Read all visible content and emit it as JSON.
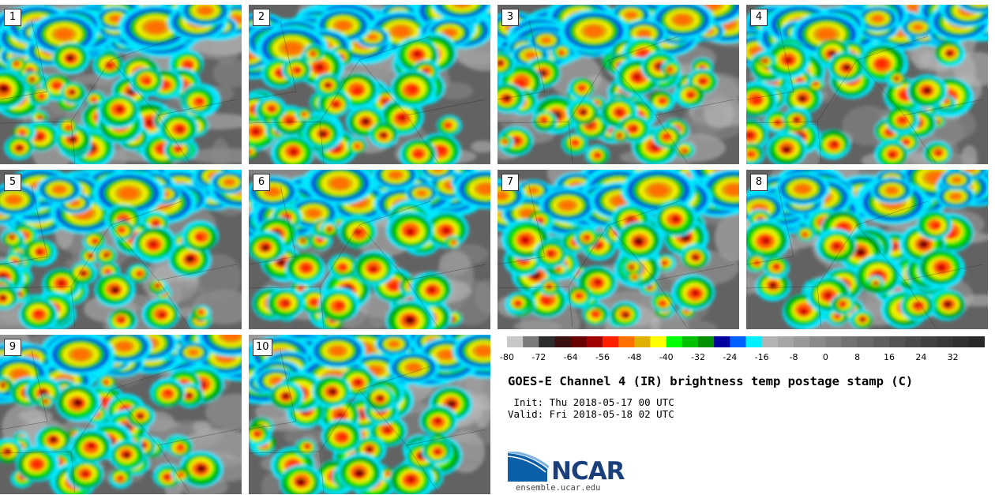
{
  "chart_data": {
    "type": "heatmap",
    "title": "GOES-E Channel 4 (IR) brightness temp postage stamp (C)",
    "init": " Init: Thu 2018-05-17 00 UTC",
    "valid": "Valid: Fri 2018-05-18 02 UTC",
    "panels": [
      "1",
      "2",
      "3",
      "4",
      "5",
      "6",
      "7",
      "8",
      "9",
      "10"
    ],
    "colorbar": {
      "min": -80,
      "max": 40,
      "step": 4,
      "ticks": [
        "-80",
        "-72",
        "-64",
        "-56",
        "-48",
        "-40",
        "-32",
        "-24",
        "-16",
        "-8",
        "0",
        "8",
        "16",
        "24",
        "32"
      ],
      "tick_values": [
        -80,
        -72,
        -64,
        -56,
        -48,
        -40,
        -32,
        -24,
        -16,
        -8,
        0,
        8,
        16,
        24,
        32
      ],
      "colors": [
        "#c8c8c8",
        "#7a7a7a",
        "#2c2c2c",
        "#3a1010",
        "#680000",
        "#a00000",
        "#ff2000",
        "#ff7000",
        "#e0b000",
        "#ffff00",
        "#00ff00",
        "#00c000",
        "#009000",
        "#0000a0",
        "#0060ff",
        "#00f0ff",
        "#b4b4b4",
        "#a6a6a6",
        "#989898",
        "#8a8a8a",
        "#7e7e7e",
        "#727272",
        "#686868",
        "#5e5e5e",
        "#545454",
        "#4a4a4a",
        "#404040",
        "#383838",
        "#303030",
        "#282828"
      ]
    }
  },
  "logo": {
    "text": "NCAR",
    "url": "ensemble.ucar.edu"
  }
}
